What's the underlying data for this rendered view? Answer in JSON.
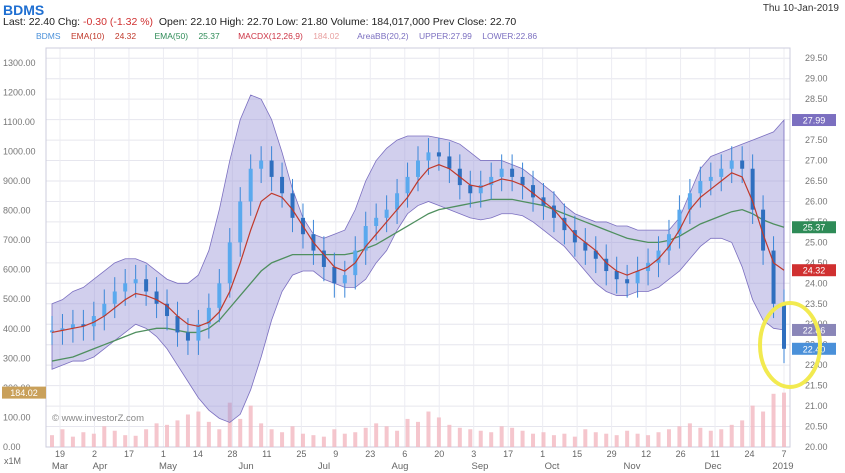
{
  "header": {
    "symbol": "BDMS",
    "date": "Thu 10-Jan-2019",
    "last_label": "Last:",
    "last": "22.40",
    "chg_label": "Chg:",
    "chg": "-0.30 (-1.32 %)",
    "open_label": "Open:",
    "open": "22.10",
    "high_label": "High:",
    "high": "22.70",
    "low_label": "Low:",
    "low": "21.80",
    "volume_label": "Volume:",
    "volume": "184,017,000",
    "prev_close_label": "Prev Close:",
    "prev_close": "22.70"
  },
  "legend": {
    "symbol": "BDMS",
    "ema10_label": "EMA(10)",
    "ema10_value": "24.32",
    "ema50_label": "EMA(50)",
    "ema50_value": "25.37",
    "macdx_label": "MACDX(12,26,9)",
    "macdx_value": "184.02",
    "areabb_label": "AreaBB(20,2)",
    "upper_label": "UPPER:27.99",
    "lower_label": "LOWER:22.86",
    "colors": {
      "symbol": "#4a90d9",
      "ema10": "#c0392b",
      "ema50": "#2e8b57",
      "macdx": "#cc3344",
      "areabb": "#7b6fc0"
    }
  },
  "watermark": "© www.investorZ.com",
  "volume_unit": "x1M",
  "chart_data": {
    "type": "line",
    "x_ticks": [
      "19",
      "2",
      "17",
      "1",
      "14",
      "28",
      "11",
      "25",
      "9",
      "23",
      "6",
      "20",
      "3",
      "17",
      "1",
      "15",
      "29",
      "12",
      "26",
      "11",
      "24",
      "7"
    ],
    "month_labels": [
      "Mar",
      "Apr",
      "May",
      "Jun",
      "Jul",
      "Aug",
      "Sep",
      "Oct",
      "Nov",
      "Dec",
      "2019"
    ],
    "y_right_ticks": [
      "29.50",
      "29.00",
      "28.50",
      "28.00",
      "27.50",
      "27.00",
      "26.50",
      "26.00",
      "25.50",
      "25.00",
      "24.50",
      "24.00",
      "23.50",
      "23.00",
      "22.50",
      "22.00",
      "21.50",
      "21.00",
      "20.50",
      "20.00"
    ],
    "y_left_ticks": [
      "1300.00",
      "1200.00",
      "1100.00",
      "1000.00",
      "900.00",
      "800.00",
      "700.00",
      "600.00",
      "500.00",
      "400.00",
      "300.00",
      "200.00",
      "100.00",
      "0.00"
    ],
    "ylim_right": [
      20,
      29.75
    ],
    "last_value_tags": [
      {
        "label": "27.99",
        "value": 27.99,
        "color": "#7b6fc0"
      },
      {
        "label": "25.37",
        "value": 25.37,
        "color": "#2e8b57"
      },
      {
        "label": "24.32",
        "value": 24.32,
        "color": "#d03030"
      },
      {
        "label": "22.86",
        "value": 22.86,
        "color": "#8a86b8"
      },
      {
        "label": "22.40",
        "value": 22.4,
        "color": "#4a90d9"
      }
    ],
    "left_tag": {
      "label": "184.02",
      "value": 184.02
    },
    "price": [
      22.85,
      22.9,
      23.0,
      22.95,
      23.2,
      23.5,
      23.8,
      24.0,
      24.1,
      23.8,
      23.5,
      23.2,
      22.8,
      22.6,
      23.0,
      23.4,
      24.0,
      25.0,
      26.0,
      26.8,
      27.0,
      26.6,
      26.2,
      25.6,
      25.2,
      24.8,
      24.4,
      24.0,
      24.2,
      24.8,
      25.4,
      25.6,
      25.8,
      26.2,
      26.6,
      27.0,
      27.2,
      27.1,
      26.8,
      26.4,
      26.2,
      26.4,
      26.6,
      26.8,
      26.6,
      26.4,
      26.1,
      25.9,
      25.6,
      25.3,
      25.0,
      24.8,
      24.6,
      24.3,
      24.1,
      24.0,
      24.3,
      24.5,
      24.8,
      25.2,
      25.8,
      26.2,
      26.5,
      26.6,
      26.8,
      27.0,
      26.8,
      25.8,
      24.8,
      23.5,
      22.4
    ],
    "ema10": [
      22.8,
      22.85,
      22.9,
      22.95,
      23.05,
      23.2,
      23.4,
      23.6,
      23.75,
      23.7,
      23.6,
      23.45,
      23.2,
      23.0,
      22.95,
      23.05,
      23.3,
      23.8,
      24.5,
      25.3,
      26.0,
      26.2,
      26.1,
      25.8,
      25.4,
      25.0,
      24.7,
      24.4,
      24.3,
      24.5,
      24.9,
      25.2,
      25.5,
      25.8,
      26.1,
      26.5,
      26.8,
      26.9,
      26.8,
      26.6,
      26.4,
      26.35,
      26.45,
      26.55,
      26.5,
      26.4,
      26.2,
      26.0,
      25.8,
      25.5,
      25.2,
      25.0,
      24.8,
      24.5,
      24.3,
      24.2,
      24.3,
      24.4,
      24.6,
      24.9,
      25.3,
      25.8,
      26.1,
      26.3,
      26.5,
      26.7,
      26.6,
      26.0,
      25.2,
      24.5,
      24.32
    ],
    "ema50": [
      22.1,
      22.15,
      22.2,
      22.3,
      22.4,
      22.5,
      22.6,
      22.7,
      22.8,
      22.85,
      22.9,
      22.9,
      22.85,
      22.8,
      22.8,
      22.9,
      23.1,
      23.4,
      23.7,
      24.0,
      24.3,
      24.5,
      24.6,
      24.7,
      24.7,
      24.7,
      24.7,
      24.7,
      24.7,
      24.75,
      24.85,
      24.95,
      25.1,
      25.25,
      25.4,
      25.55,
      25.7,
      25.8,
      25.85,
      25.9,
      25.95,
      26.0,
      26.05,
      26.05,
      26.05,
      26.0,
      25.95,
      25.9,
      25.8,
      25.7,
      25.6,
      25.5,
      25.4,
      25.3,
      25.2,
      25.1,
      25.05,
      25.0,
      25.0,
      25.05,
      25.15,
      25.3,
      25.45,
      25.55,
      25.65,
      25.75,
      25.8,
      25.7,
      25.55,
      25.45,
      25.37
    ],
    "bb_upper": [
      23.5,
      23.6,
      23.8,
      23.9,
      24.1,
      24.3,
      24.5,
      24.6,
      24.6,
      24.5,
      24.3,
      24.1,
      24.0,
      24.0,
      24.2,
      24.8,
      25.8,
      27.0,
      28.0,
      28.6,
      28.5,
      28.0,
      27.2,
      26.3,
      25.6,
      25.2,
      25.1,
      25.2,
      25.3,
      25.8,
      26.5,
      27.0,
      27.3,
      27.5,
      27.6,
      27.6,
      27.6,
      27.55,
      27.5,
      27.4,
      27.2,
      27.0,
      27.0,
      27.0,
      26.9,
      26.8,
      26.6,
      26.4,
      26.2,
      25.9,
      25.7,
      25.6,
      25.5,
      25.5,
      25.4,
      25.4,
      25.3,
      25.3,
      25.3,
      25.3,
      25.6,
      26.2,
      26.8,
      27.1,
      27.2,
      27.3,
      27.4,
      27.5,
      27.6,
      27.7,
      27.99
    ],
    "bb_lower": [
      21.9,
      22.0,
      22.1,
      22.1,
      22.2,
      22.4,
      22.6,
      22.8,
      23.0,
      22.9,
      22.7,
      22.4,
      22.0,
      21.6,
      21.2,
      20.9,
      20.7,
      20.6,
      20.8,
      21.4,
      22.2,
      23.1,
      23.8,
      24.2,
      24.3,
      24.3,
      24.1,
      24.0,
      23.9,
      23.9,
      24.1,
      24.5,
      24.8,
      25.3,
      25.7,
      25.9,
      26.0,
      25.9,
      25.8,
      25.7,
      25.6,
      25.55,
      25.6,
      25.7,
      25.7,
      25.65,
      25.5,
      25.3,
      25.1,
      24.9,
      24.6,
      24.3,
      24.0,
      23.8,
      23.7,
      23.7,
      23.8,
      23.8,
      23.9,
      24.1,
      24.3,
      24.6,
      24.9,
      25.1,
      25.1,
      25.0,
      24.4,
      23.6,
      23.1,
      22.9,
      22.86
    ],
    "volume": [
      40,
      60,
      35,
      50,
      45,
      70,
      55,
      40,
      38,
      60,
      80,
      75,
      90,
      110,
      120,
      85,
      60,
      150,
      95,
      140,
      80,
      60,
      50,
      70,
      45,
      40,
      35,
      60,
      45,
      50,
      65,
      80,
      70,
      55,
      95,
      85,
      120,
      100,
      75,
      65,
      60,
      55,
      50,
      70,
      65,
      55,
      45,
      50,
      40,
      45,
      35,
      60,
      50,
      45,
      40,
      55,
      45,
      40,
      50,
      60,
      70,
      80,
      65,
      55,
      60,
      75,
      90,
      140,
      120,
      180,
      184
    ]
  }
}
